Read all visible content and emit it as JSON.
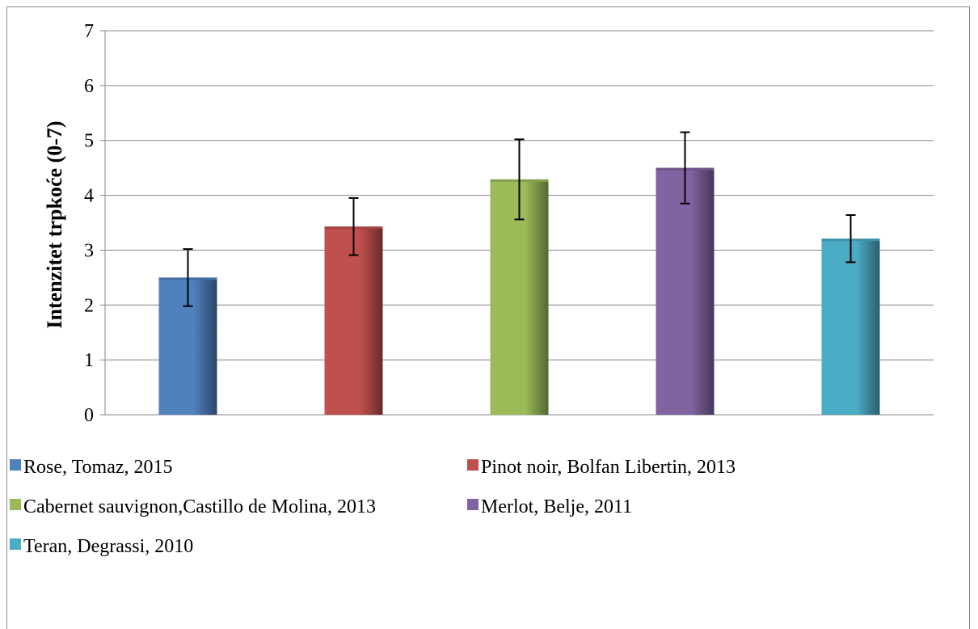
{
  "chart_data": {
    "type": "bar",
    "title": "",
    "xlabel": "",
    "ylabel": "Intenzitet trpkoće (0-7)",
    "ylim": [
      0,
      7
    ],
    "yticks": [
      0,
      1,
      2,
      3,
      4,
      5,
      6,
      7
    ],
    "grid": true,
    "legend_position": "bottom",
    "categories": [
      "Rose, Tomaz, 2015",
      "Pinot noir, Bolfan Libertin, 2013",
      "Cabernet sauvignon,Castillo de Molina, 2013",
      "Merlot, Belje, 2011",
      "Teran, Degrassi, 2010"
    ],
    "values": [
      2.5,
      3.43,
      4.29,
      4.5,
      3.21
    ],
    "error": [
      0.52,
      0.52,
      0.73,
      0.65,
      0.43
    ],
    "colors": [
      "#4f81bd",
      "#c0504d",
      "#9bbb59",
      "#8064a2",
      "#4bacc6"
    ]
  }
}
